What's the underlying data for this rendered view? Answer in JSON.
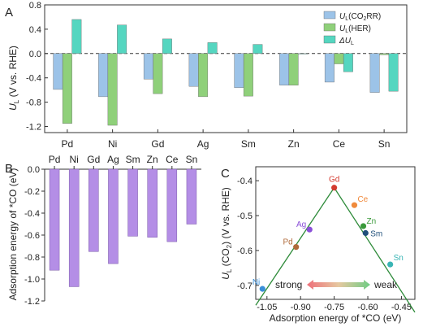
{
  "chart_data": [
    {
      "panel": "A",
      "type": "bar",
      "categories": [
        "Pd",
        "Ni",
        "Gd",
        "Ag",
        "Sm",
        "Zn",
        "Ce",
        "Sn"
      ],
      "ylabel": "U_L (V vs. RHE)",
      "ylim": [
        -1.3,
        0.8
      ],
      "yticks": [
        -1.2,
        -0.8,
        -0.4,
        0.0,
        0.4,
        0.8
      ],
      "ytick_labels": [
        "-1.2",
        "-0.8",
        "-0.4",
        "0.0",
        "0.4",
        "0.8"
      ],
      "legend_position": "top-right",
      "series": [
        {
          "name": "U_L(CO2RR)",
          "legend_main": "U",
          "legend_sub": "L",
          "legend_rest": "(CO",
          "legend_sub2": "2",
          "legend_end": "RR)",
          "color": "#9cc3e8",
          "values": [
            -0.59,
            -0.71,
            -0.42,
            -0.54,
            -0.56,
            -0.52,
            -0.47,
            -0.64
          ]
        },
        {
          "name": "U_L(HER)",
          "legend_main": "U",
          "legend_sub": "L",
          "legend_rest": "(HER)",
          "legend_sub2": "",
          "legend_end": "",
          "color": "#8fd07a",
          "values": [
            -1.15,
            -1.18,
            -0.66,
            -0.71,
            -0.7,
            -0.52,
            -0.17,
            -0.02
          ]
        },
        {
          "name": "ΔU_L",
          "legend_main": "ΔU",
          "legend_sub": "L",
          "legend_rest": "",
          "legend_sub2": "",
          "legend_end": "",
          "color": "#55d6c0",
          "values": [
            0.56,
            0.47,
            0.24,
            0.18,
            0.15,
            0.0,
            -0.3,
            -0.62
          ]
        }
      ]
    },
    {
      "panel": "B",
      "type": "bar",
      "categories": [
        "Pd",
        "Ni",
        "Gd",
        "Ag",
        "Sm",
        "Zn",
        "Ce",
        "Sn"
      ],
      "ylabel": "Adsorption energy of *CO (eV)",
      "ylim": [
        -1.2,
        0.0
      ],
      "yticks": [
        0.0,
        -0.2,
        -0.4,
        -0.6,
        -0.8,
        -1.0,
        -1.2
      ],
      "ytick_labels": [
        "0.0",
        "-0.2",
        "-0.4",
        "-0.6",
        "-0.8",
        "-1.0",
        "-1.2"
      ],
      "color": "#b48ee6",
      "values": [
        -0.92,
        -1.07,
        -0.75,
        -0.86,
        -0.61,
        -0.62,
        -0.66,
        -0.5
      ]
    },
    {
      "panel": "C",
      "type": "scatter",
      "xlabel": "Adsorption energy of *CO (eV)",
      "ylabel": "U_L (CO2) (V vs. RHE)",
      "xlim": [
        -1.1,
        -0.39
      ],
      "ylim": [
        -0.74,
        -0.36
      ],
      "xticks": [
        -1.05,
        -0.9,
        -0.75,
        -0.6,
        -0.45
      ],
      "xtick_labels": [
        "-1.05",
        "-0.90",
        "-0.75",
        "-0.60",
        "-0.45"
      ],
      "yticks": [
        -0.4,
        -0.5,
        -0.6,
        -0.7
      ],
      "ytick_labels": [
        "-0.4",
        "-0.5",
        "-0.6",
        "-0.7"
      ],
      "points": [
        {
          "label": "Gd",
          "x": -0.75,
          "y": -0.42,
          "color": "#d43a2f"
        },
        {
          "label": "Ce",
          "x": -0.66,
          "y": -0.47,
          "color": "#f08a3c"
        },
        {
          "label": "Zn",
          "x": -0.62,
          "y": -0.53,
          "color": "#3a9a3a"
        },
        {
          "label": "Sm",
          "x": -0.61,
          "y": -0.55,
          "color": "#1f4f7a"
        },
        {
          "label": "Ag",
          "x": -0.86,
          "y": -0.54,
          "color": "#8a4fd8"
        },
        {
          "label": "Pd",
          "x": -0.92,
          "y": -0.59,
          "color": "#b06a3a"
        },
        {
          "label": "Sn",
          "x": -0.5,
          "y": -0.64,
          "color": "#3ab5b5"
        },
        {
          "label": "Ni",
          "x": -1.07,
          "y": -0.71,
          "color": "#3a8fd8"
        }
      ],
      "volcano": {
        "color": "#2e8b3a",
        "apex": [
          -0.75,
          -0.42
        ],
        "left": [
          -1.1,
          -0.757
        ],
        "right": [
          -0.39,
          -0.777
        ]
      },
      "arrow": {
        "left_text": "strong",
        "right_text": "weak"
      }
    }
  ],
  "panel_labels": {
    "a": "A",
    "b": "B",
    "c": "C"
  },
  "ylabel_a": {
    "main": "U",
    "sub": "L",
    "rest": " (V vs. RHE)"
  },
  "ylabel_b": "Adsorption energy of *CO (eV)",
  "ylabel_c": {
    "main": "U",
    "sub": "L",
    "rest1": " (CO",
    "sub2": "2",
    "rest2": ") (V vs. RHE)"
  },
  "xlabel_c": "Adsorption energy of *CO (eV)"
}
